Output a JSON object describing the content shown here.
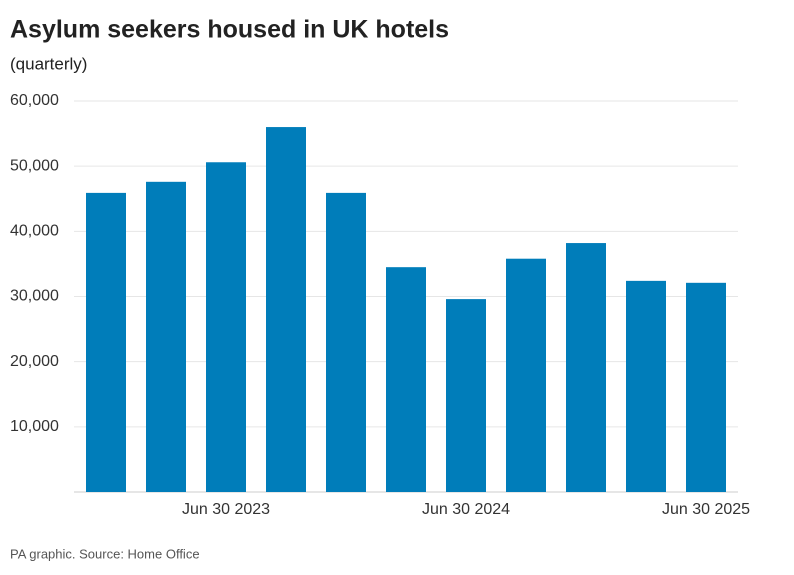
{
  "chart_data": {
    "type": "bar",
    "title": "Asylum seekers housed in UK hotels",
    "subtitle": "(quarterly)",
    "categories": [
      null,
      null,
      "Jun 30 2023",
      null,
      null,
      null,
      "Jun 30 2024",
      null,
      null,
      null,
      "Jun 30 2025"
    ],
    "values": [
      45900,
      47600,
      50600,
      56000,
      45900,
      34500,
      29600,
      35800,
      38200,
      32400,
      32100
    ],
    "color": "#007dba",
    "ylim": [
      0,
      60000
    ],
    "yticks": [
      {
        "value": 10000,
        "label": "10,000"
      },
      {
        "value": 20000,
        "label": "20,000"
      },
      {
        "value": 30000,
        "label": "30,000"
      },
      {
        "value": 40000,
        "label": "40,000"
      },
      {
        "value": 50000,
        "label": "50,000"
      },
      {
        "value": 60000,
        "label": "60,000"
      }
    ],
    "grid": true,
    "source": "PA graphic. Source: Home Office"
  }
}
